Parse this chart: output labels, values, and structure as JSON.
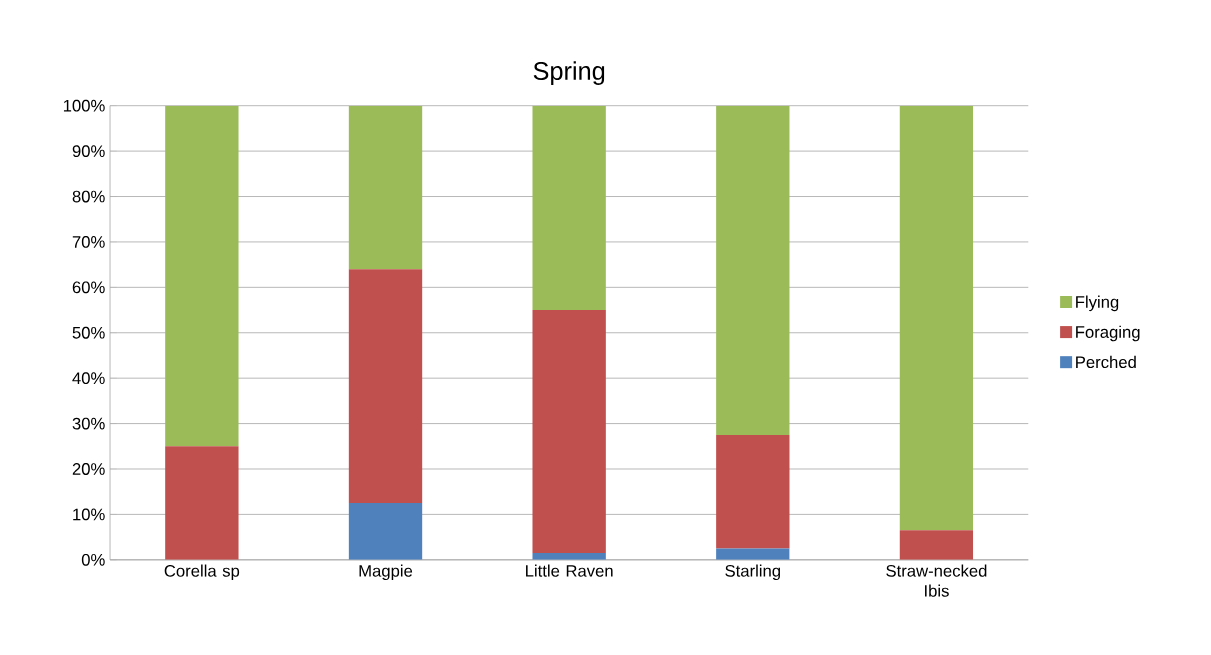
{
  "chart_data": {
    "type": "bar",
    "title": "Spring",
    "stacked": true,
    "categories": [
      "Corella sp",
      "Magpie",
      "Little Raven",
      "Starling",
      "Straw-necked Ibis"
    ],
    "series": [
      {
        "name": "Perched",
        "color": "#4f81bd",
        "values": [
          0,
          12.5,
          1.5,
          2.5,
          0
        ]
      },
      {
        "name": "Foraging",
        "color": "#c0504d",
        "values": [
          25,
          51.5,
          53.5,
          25,
          6.5
        ]
      },
      {
        "name": "Flying",
        "color": "#9bbb59",
        "values": [
          75,
          36,
          45,
          72.5,
          93.5
        ]
      }
    ],
    "ylim": [
      0,
      100
    ],
    "yticks": [
      {
        "value": 0,
        "label": "0%"
      },
      {
        "value": 10,
        "label": "10%"
      },
      {
        "value": 20,
        "label": "20%"
      },
      {
        "value": 30,
        "label": "30%"
      },
      {
        "value": 40,
        "label": "40%"
      },
      {
        "value": 50,
        "label": "50%"
      },
      {
        "value": 60,
        "label": "60%"
      },
      {
        "value": 70,
        "label": "70%"
      },
      {
        "value": 80,
        "label": "80%"
      },
      {
        "value": 90,
        "label": "90%"
      },
      {
        "value": 100,
        "label": "100%"
      }
    ],
    "grid": "y",
    "legend": "right"
  }
}
